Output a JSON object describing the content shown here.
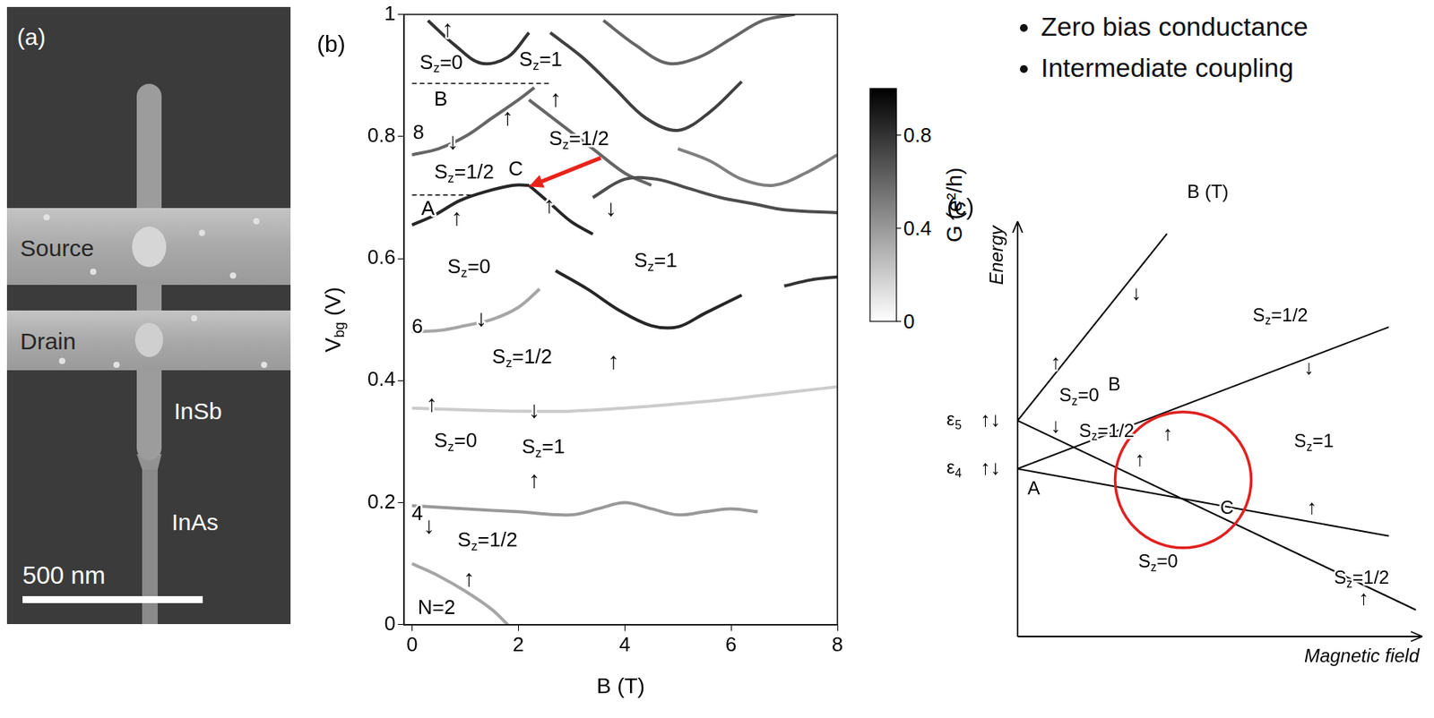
{
  "panel_a": {
    "label": "(a)",
    "texts": {
      "source": "Source",
      "drain": "Drain",
      "upper": "InSb",
      "lower": "InAs",
      "scale_bar": "500 nm"
    }
  },
  "bullets": [
    "Zero bias conductance",
    "Intermediate coupling"
  ],
  "chart_data": [
    {
      "type": "line",
      "panel": "(b)",
      "x_label": "B (T)",
      "y_label": "Vbg (V)",
      "xlim": [
        -0.15,
        8
      ],
      "xticks": [
        0,
        2,
        4,
        6,
        8
      ],
      "ylim": [
        0,
        1
      ],
      "yticks": [
        0,
        0.2,
        0.4,
        0.6,
        0.8,
        1
      ],
      "grid": false,
      "colorbar": {
        "label": "G (e²/h)",
        "range": [
          0,
          1
        ],
        "ticks": [
          0,
          0.4,
          0.8
        ]
      },
      "series": [
        {
          "x": [
            0,
            0.5,
            1,
            1.5,
            1.8
          ],
          "values": [
            0.1,
            0.08,
            0.055,
            0.025,
            0.0
          ],
          "G": 0.35
        },
        {
          "x": [
            0,
            1,
            2,
            3,
            3.5,
            4,
            4.5,
            5,
            5.5,
            6,
            6.5
          ],
          "values": [
            0.195,
            0.19,
            0.185,
            0.18,
            0.19,
            0.2,
            0.19,
            0.18,
            0.185,
            0.19,
            0.185
          ],
          "G": 0.4
        },
        {
          "x": [
            0,
            1,
            2,
            3,
            4,
            5,
            6,
            7,
            8
          ],
          "values": [
            0.355,
            0.352,
            0.35,
            0.35,
            0.355,
            0.362,
            0.37,
            0.38,
            0.39
          ],
          "G": 0.2
        },
        {
          "x": [
            0,
            0.5,
            1,
            1.5,
            2,
            2.4
          ],
          "values": [
            0.48,
            0.482,
            0.49,
            0.5,
            0.52,
            0.55
          ],
          "G": 0.35
        },
        {
          "x": [
            2.7,
            3.3,
            3.9,
            4.5,
            5,
            5.5,
            6.2
          ],
          "values": [
            0.58,
            0.55,
            0.515,
            0.49,
            0.488,
            0.51,
            0.54
          ],
          "G": 0.85
        },
        {
          "x": [
            7,
            7.5,
            8
          ],
          "values": [
            0.555,
            0.565,
            0.57
          ],
          "G": 0.8
        },
        {
          "x": [
            0,
            0.4,
            0.9,
            1.4,
            1.9,
            2.2
          ],
          "values": [
            0.655,
            0.67,
            0.695,
            0.71,
            0.72,
            0.72
          ],
          "G": 0.85
        },
        {
          "x": [
            2.2,
            2.6,
            3,
            3.4
          ],
          "values": [
            0.72,
            0.69,
            0.66,
            0.64
          ],
          "G": 0.85
        },
        {
          "x": [
            3.4,
            4,
            4.6,
            5.2,
            5.8,
            6.4,
            7,
            8
          ],
          "values": [
            0.7,
            0.73,
            0.73,
            0.715,
            0.7,
            0.69,
            0.68,
            0.675
          ],
          "G": 0.7
        },
        {
          "x": [
            0,
            0.5,
            1,
            1.5,
            2,
            2.3
          ],
          "values": [
            0.77,
            0.78,
            0.8,
            0.83,
            0.86,
            0.88
          ],
          "G": 0.6
        },
        {
          "x": [
            2.2,
            2.8,
            3.4,
            4,
            4.5
          ],
          "values": [
            0.86,
            0.82,
            0.78,
            0.74,
            0.72
          ],
          "G": 0.6
        },
        {
          "x": [
            0.3,
            0.8,
            1.3,
            1.8,
            2.2
          ],
          "values": [
            0.99,
            0.95,
            0.92,
            0.93,
            0.97
          ],
          "G": 0.8
        },
        {
          "x": [
            2.6,
            3.2,
            3.8,
            4.4,
            5,
            5.6,
            6.2
          ],
          "values": [
            0.97,
            0.93,
            0.88,
            0.83,
            0.81,
            0.84,
            0.89
          ],
          "G": 0.75
        },
        {
          "x": [
            3.6,
            4.2,
            4.8,
            5.4,
            6,
            6.6,
            7.2
          ],
          "values": [
            0.99,
            0.95,
            0.92,
            0.93,
            0.96,
            0.99,
            1.0
          ],
          "G": 0.6
        },
        {
          "x": [
            5,
            5.6,
            6.2,
            6.8,
            7.4,
            8
          ],
          "values": [
            0.78,
            0.76,
            0.73,
            0.72,
            0.74,
            0.77
          ],
          "G": 0.5
        },
        {
          "x": [
            0,
            2.6
          ],
          "values": [
            0.887,
            0.887
          ],
          "color": "#000000",
          "line_style": "dashed"
        },
        {
          "x": [
            0,
            1.2
          ],
          "values": [
            0.704,
            0.704
          ],
          "color": "#000000",
          "line_style": "dashed"
        }
      ],
      "annotations": [
        {
          "text": "Sz=0",
          "x": 0.55,
          "y": 0.92
        },
        {
          "text": "Sz=1",
          "x": 2.42,
          "y": 0.925
        },
        {
          "text": "↑",
          "x": 0.67,
          "y": 0.975
        },
        {
          "text": "B",
          "x": 0.54,
          "y": 0.86
        },
        {
          "text": "↑",
          "x": 1.8,
          "y": 0.83
        },
        {
          "text": "↑",
          "x": 2.7,
          "y": 0.86
        },
        {
          "text": "8",
          "x": 0.12,
          "y": 0.805
        },
        {
          "text": "↓",
          "x": 0.77,
          "y": 0.79
        },
        {
          "text": "Sz=1/2",
          "x": 3.14,
          "y": 0.795
        },
        {
          "text": "Sz=1/2",
          "x": 0.98,
          "y": 0.74
        },
        {
          "text": "C",
          "x": 1.95,
          "y": 0.745
        },
        {
          "text": "A",
          "x": 0.3,
          "y": 0.68
        },
        {
          "text": "↑",
          "x": 0.84,
          "y": 0.665
        },
        {
          "text": "↑",
          "x": 2.58,
          "y": 0.686
        },
        {
          "text": "↓",
          "x": 3.74,
          "y": 0.68
        },
        {
          "text": "Sz=0",
          "x": 1.07,
          "y": 0.585
        },
        {
          "text": "Sz=1",
          "x": 4.58,
          "y": 0.595
        },
        {
          "text": "6",
          "x": 0.1,
          "y": 0.487
        },
        {
          "text": "↓",
          "x": 1.3,
          "y": 0.5
        },
        {
          "text": "↑",
          "x": 3.79,
          "y": 0.43
        },
        {
          "text": "Sz=1/2",
          "x": 2.07,
          "y": 0.437
        },
        {
          "text": "↑",
          "x": 0.37,
          "y": 0.36
        },
        {
          "text": "↓",
          "x": 2.3,
          "y": 0.35
        },
        {
          "text": "Sz=0",
          "x": 0.82,
          "y": 0.3
        },
        {
          "text": "Sz=1",
          "x": 2.47,
          "y": 0.29
        },
        {
          "text": "4",
          "x": 0.1,
          "y": 0.18
        },
        {
          "text": "↓",
          "x": 0.32,
          "y": 0.16
        },
        {
          "text": "↑",
          "x": 2.3,
          "y": 0.235
        },
        {
          "text": "Sz=1/2",
          "x": 1.42,
          "y": 0.137
        },
        {
          "text": "↑",
          "x": 1.07,
          "y": 0.074
        },
        {
          "text": "N=2",
          "x": 0.46,
          "y": 0.027
        }
      ],
      "arrow": {
        "x": 3.55,
        "y": 0.765,
        "to_x": 2.2,
        "to_y": 0.718,
        "color": "#e8231a"
      }
    },
    {
      "type": "line",
      "panel": "(c)",
      "x_label": "Magnetic field",
      "y_label": "Energy",
      "tick_labels": false,
      "xlim": [
        0,
        10
      ],
      "ylim": [
        0,
        10
      ],
      "series": [
        {
          "x": [
            0,
            3.69
          ],
          "values": [
            5.2,
            9.7
          ],
          "color": "#000000"
        },
        {
          "x": [
            0,
            9.84
          ],
          "values": [
            5.2,
            0.64
          ],
          "color": "#000000"
        },
        {
          "x": [
            0,
            9.17
          ],
          "values": [
            4.04,
            7.45
          ],
          "color": "#000000"
        },
        {
          "x": [
            0,
            9.17
          ],
          "values": [
            4.04,
            2.42
          ],
          "color": "#000000"
        }
      ],
      "annotations": [
        {
          "text": "B (T)",
          "x": 4.7,
          "y": 10.68
        },
        {
          "text": "ε5",
          "x": -1.57,
          "y": 5.2
        },
        {
          "text": "↑↓",
          "x": -0.67,
          "y": 5.2
        },
        {
          "text": "ε4",
          "x": -1.57,
          "y": 4.04
        },
        {
          "text": "↑↓",
          "x": -0.67,
          "y": 4.04
        },
        {
          "text": "A",
          "x": 0.4,
          "y": 3.54
        },
        {
          "text": "B",
          "x": 2.39,
          "y": 6.05
        },
        {
          "text": "C",
          "x": 5.17,
          "y": 3.08
        },
        {
          "text": "Sz=0",
          "x": 1.52,
          "y": 5.78
        },
        {
          "text": "↑",
          "x": 0.94,
          "y": 6.58
        },
        {
          "text": "↓",
          "x": 0.94,
          "y": 5.05
        },
        {
          "text": "Sz=1/2",
          "x": 2.2,
          "y": 4.93
        },
        {
          "text": "↑",
          "x": 3.02,
          "y": 4.25
        },
        {
          "text": "↑",
          "x": 3.71,
          "y": 4.86
        },
        {
          "text": "↓",
          "x": 2.93,
          "y": 8.24
        },
        {
          "text": "Sz=1/2",
          "x": 6.49,
          "y": 7.72
        },
        {
          "text": "↓",
          "x": 7.2,
          "y": 6.46
        },
        {
          "text": "Sz=1",
          "x": 7.32,
          "y": 4.68
        },
        {
          "text": "↑",
          "x": 7.27,
          "y": 3.08
        },
        {
          "text": "Sz=0",
          "x": 3.47,
          "y": 1.78
        },
        {
          "text": "Sz=1/2",
          "x": 8.5,
          "y": 1.39
        },
        {
          "text": "↑",
          "x": 8.55,
          "y": 0.9
        }
      ],
      "circle": {
        "x": 4.09,
        "y": 3.77,
        "r": 1.68,
        "color": "#e02020"
      }
    }
  ]
}
